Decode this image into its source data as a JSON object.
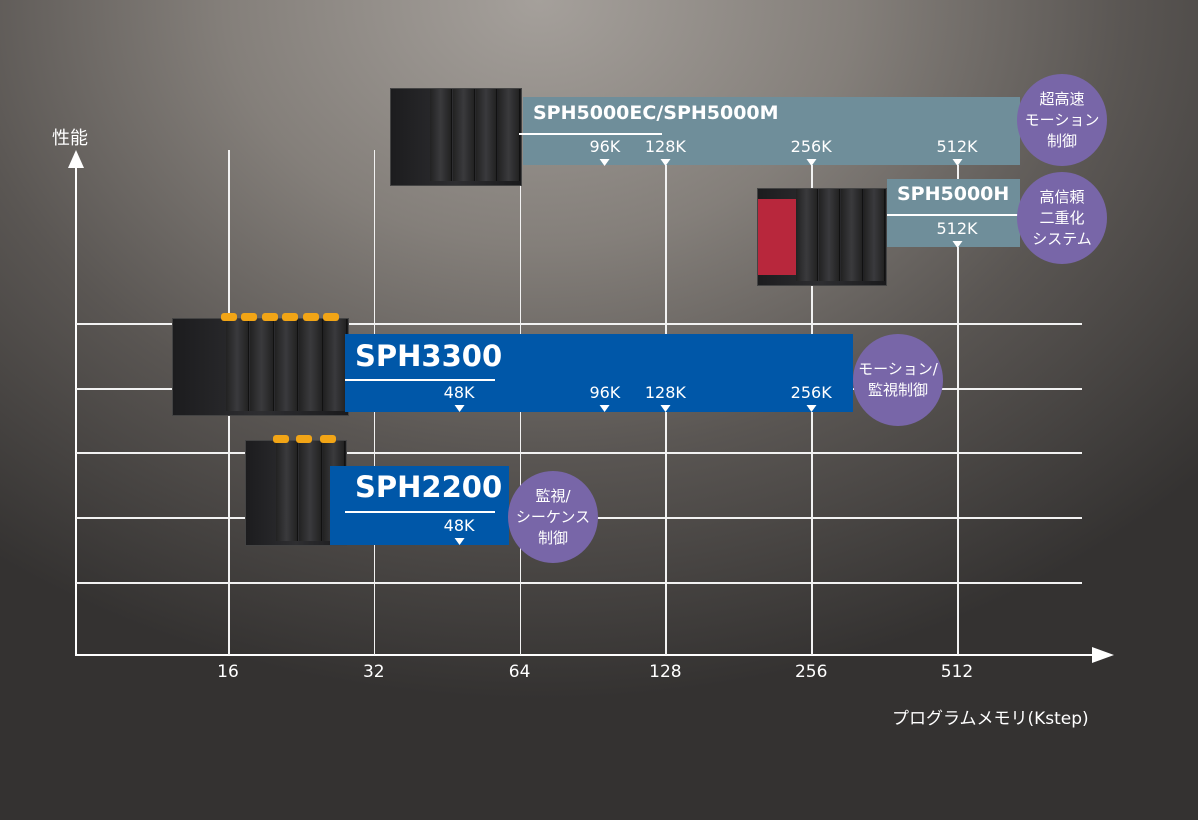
{
  "chart_data": {
    "type": "bar",
    "subtype": "range-bar",
    "ylabel": "性能",
    "xlabel": "プログラムメモリ(Kstep)",
    "x_scale": "log2",
    "x_ticks": [
      "16",
      "32",
      "64",
      "128",
      "256",
      "512"
    ],
    "grid": true,
    "series": [
      {
        "name": "SPH5000EC/SPH5000M",
        "memory_options": [
          "96K",
          "128K",
          "256K",
          "512K"
        ],
        "marker_values": [
          96,
          128,
          256,
          512
        ],
        "color": "#6f8e9a",
        "category": "超高速\nモーション\n制御"
      },
      {
        "name": "SPH5000H",
        "memory_options": [
          "512K"
        ],
        "marker_values": [
          512
        ],
        "color": "#6f8e9a",
        "category": "高信頼\n二重化\nシステム"
      },
      {
        "name": "SPH3300",
        "memory_options": [
          "48K",
          "96K",
          "128K",
          "256K"
        ],
        "marker_values": [
          48,
          96,
          128,
          256
        ],
        "color": "#0057a8",
        "category": "モーション/\n監視制御"
      },
      {
        "name": "SPH2200",
        "memory_options": [
          "48K"
        ],
        "marker_values": [
          48
        ],
        "color": "#0057a8",
        "category": "監視/\nシーケンス\n制御"
      }
    ],
    "category_color": "#7866a8"
  }
}
